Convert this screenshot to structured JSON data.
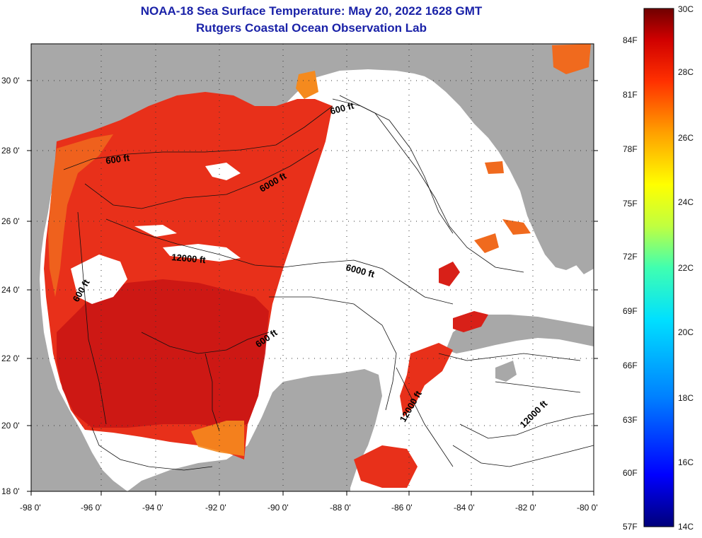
{
  "title": {
    "line1": "NOAA-18 Sea Surface Temperature:  May 20, 2022 1628 GMT",
    "line2": "Rutgers Coastal Ocean Observation Lab"
  },
  "map": {
    "latitude_ticks": [
      "30 0'",
      "28 0'",
      "26 0'",
      "24 0'",
      "22 0'",
      "20 0'",
      "18 0'"
    ],
    "longitude_ticks": [
      "-98 0'",
      "-96 0'",
      "-94 0'",
      "-92 0'",
      "-90 0'",
      "-88 0'",
      "-86 0'",
      "-84 0'",
      "-82 0'",
      "-80 0'"
    ],
    "contour_labels": [
      "600 ft",
      "6000 ft",
      "12000 ft",
      "600 ft",
      "600 ft",
      "6000 ft",
      "600 ft",
      "12000 ft",
      "12000 ft"
    ],
    "colors": {
      "land": "#a8a8a8",
      "no_data": "#ffffff",
      "sst_main": "#e8301a",
      "sst_warm": "#c81414",
      "sst_cool": "#f06a1e"
    }
  },
  "colorbar": {
    "fahrenheit_labels": [
      "84F",
      "81F",
      "78F",
      "75F",
      "72F",
      "69F",
      "66F",
      "63F",
      "60F",
      "57F"
    ],
    "celsius_labels": [
      "30C",
      "28C",
      "26C",
      "24C",
      "22C",
      "20C",
      "18C",
      "16C",
      "14C"
    ],
    "stops": [
      "#00007a",
      "#0000ff",
      "#0080ff",
      "#00e0ff",
      "#40ffb0",
      "#c0ff40",
      "#ffff00",
      "#ffa000",
      "#ff3000",
      "#d00000",
      "#700000"
    ]
  }
}
